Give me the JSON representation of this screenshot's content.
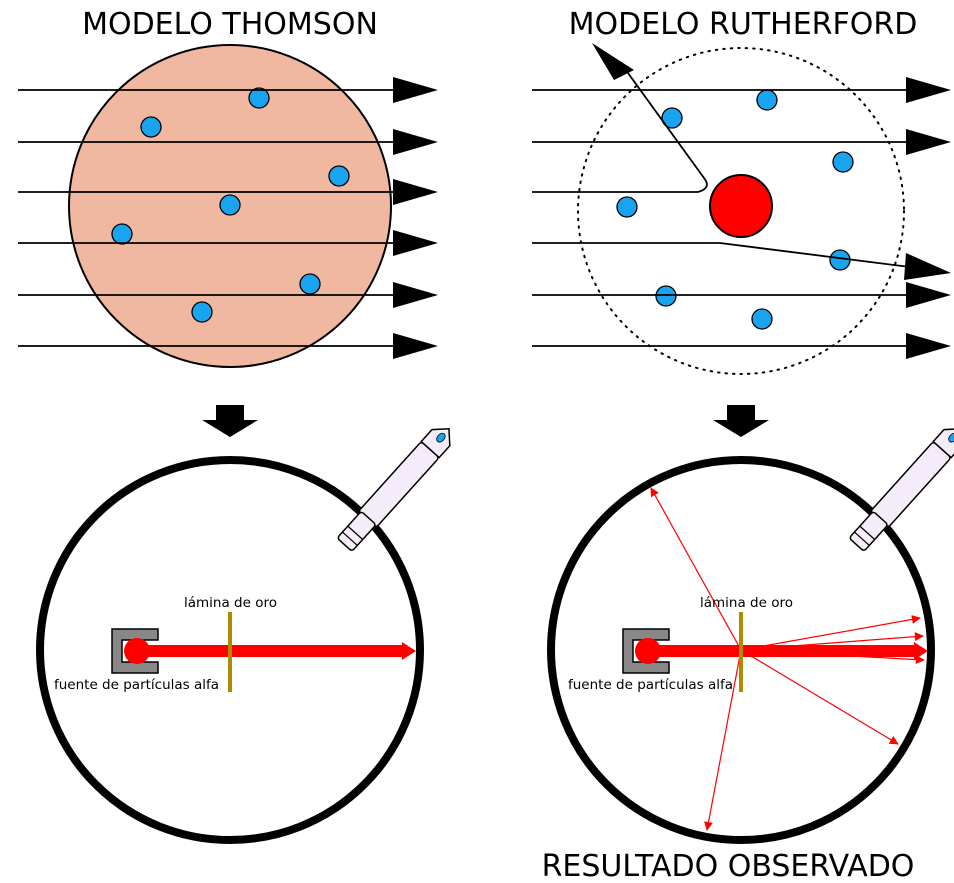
{
  "titles": {
    "thomson": "MODELO THOMSON",
    "rutherford": "MODELO RUTHERFORD",
    "observed": "RESULTADO OBSERVADO"
  },
  "labels": {
    "foil": "lámina de oro",
    "source": "fuente de partículas alfa"
  },
  "colors": {
    "thomson_sphere": "#f0b8a0",
    "electron": "#1aa3ef",
    "nucleus": "#ff0000",
    "beam": "#ff0000",
    "foil": "#b08a00",
    "source_box": "#888888"
  }
}
